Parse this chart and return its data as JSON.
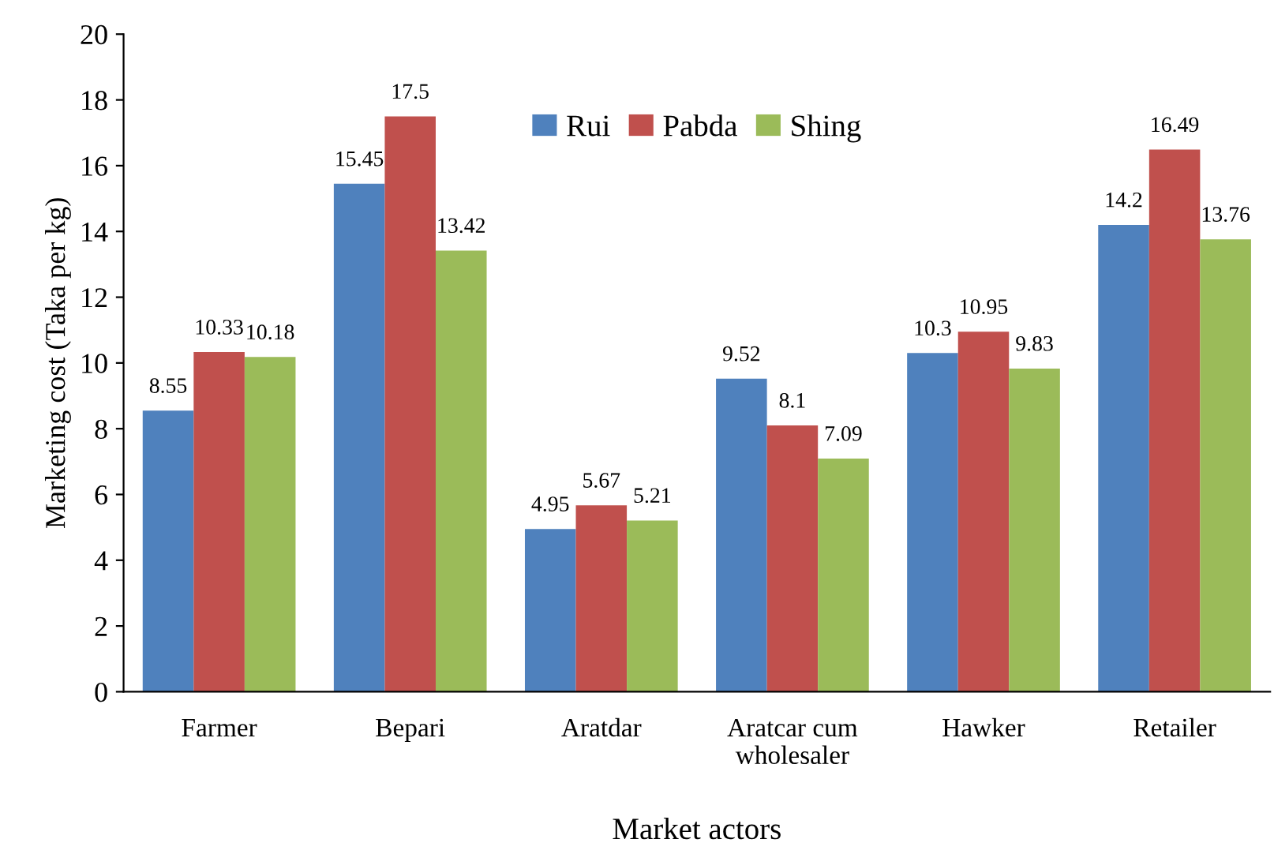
{
  "chart_data": {
    "type": "bar",
    "xlabel": "Market actors",
    "ylabel": "Marketing cost (Taka per kg)",
    "categories": [
      "Farmer",
      "Bepari",
      "Aratdar",
      "Aratcar cum\nwholesaler",
      "Hawker",
      "Retailer"
    ],
    "series": [
      {
        "name": "Rui",
        "color": "#4f81bd",
        "values": [
          8.55,
          15.45,
          4.95,
          9.52,
          10.3,
          14.2
        ]
      },
      {
        "name": "Pabda",
        "color": "#c0504d",
        "values": [
          10.33,
          17.5,
          5.67,
          8.1,
          10.95,
          16.49
        ]
      },
      {
        "name": "Shing",
        "color": "#9bbb59",
        "values": [
          10.18,
          13.42,
          5.21,
          7.09,
          9.83,
          13.76
        ]
      }
    ],
    "ylim": [
      0,
      20
    ],
    "yticks": [
      0,
      2,
      4,
      6,
      8,
      10,
      12,
      14,
      16,
      18,
      20
    ],
    "data_labels": true,
    "grid": false,
    "legend": "top"
  }
}
